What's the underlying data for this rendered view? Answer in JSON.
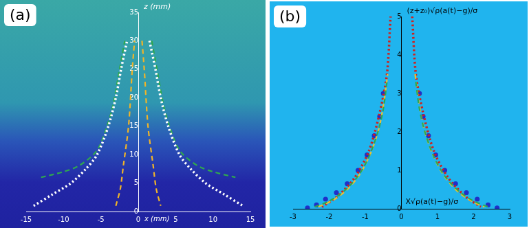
{
  "chart_data": [
    {
      "type": "line",
      "title": "(a)",
      "x_label": "x (mm)",
      "y_label": "z (mm)",
      "xlim": [
        -15,
        15
      ],
      "ylim": [
        0,
        35
      ],
      "xticks": [
        -15,
        -10,
        -5,
        0,
        5,
        10,
        15
      ],
      "yticks": [
        0,
        5,
        10,
        15,
        20,
        25,
        30,
        35
      ],
      "grid": false,
      "color": "#ffffff",
      "series": [
        {
          "color": "#ffffff",
          "line_style": "dotted",
          "marker": "none",
          "x": [
            -14,
            -11.5,
            -9,
            -7,
            -5.5,
            -4,
            -3,
            -2.3,
            -1.5,
            null,
            1.5,
            2.3,
            3,
            4,
            5.5,
            7,
            9,
            11.5,
            14
          ],
          "values": [
            1,
            3,
            5,
            7.5,
            10,
            15,
            20,
            25,
            30,
            null,
            30,
            25,
            20,
            15,
            10,
            7.5,
            5,
            3,
            1
          ]
        },
        {
          "color": "#2fa84f",
          "line_style": "dashed",
          "marker": "none",
          "x": [
            -13,
            -10,
            -8,
            -6,
            -5,
            -3.5,
            -2.5,
            -1.8,
            null,
            1.8,
            2.5,
            3.5,
            5,
            6,
            8,
            10,
            13
          ],
          "values": [
            6,
            7,
            8,
            10,
            12,
            18,
            25,
            30,
            null,
            30,
            25,
            18,
            12,
            10,
            8,
            7,
            6
          ]
        },
        {
          "color": "#f0b428",
          "line_style": "dashed",
          "marker": "none",
          "x": [
            -3,
            -2.4,
            -2,
            -1.3,
            -0.8,
            -0.5,
            null,
            0.5,
            0.8,
            1.3,
            2,
            2.4,
            3
          ],
          "values": [
            1,
            4,
            8,
            15,
            25,
            30,
            null,
            30,
            25,
            15,
            8,
            4,
            1
          ]
        }
      ]
    },
    {
      "type": "line",
      "title": "(b)",
      "x_label": "X√ρ(a(t)−g)/σ",
      "y_label": "(z+z₀)√ρ(a(t)−g)/σ",
      "xlim": [
        -3,
        3
      ],
      "ylim": [
        0,
        5
      ],
      "xticks": [
        -3,
        -2,
        -1,
        0,
        1,
        2,
        3
      ],
      "yticks": [
        0,
        1,
        2,
        3,
        4,
        5
      ],
      "grid": false,
      "color": "#000000",
      "series": [
        {
          "color": "#2fa84f",
          "line_style": "dashed",
          "marker": "none",
          "x": [
            -2.4,
            -2,
            -1.6,
            -1.2,
            -0.9,
            -0.65,
            -0.5,
            -0.4,
            null,
            0.4,
            0.5,
            0.65,
            0.9,
            1.2,
            1.6,
            2,
            2.4
          ],
          "values": [
            0.05,
            0.2,
            0.45,
            0.85,
            1.35,
            2,
            2.6,
            3.3,
            null,
            3.3,
            2.6,
            2,
            1.35,
            0.85,
            0.45,
            0.2,
            0.05
          ]
        },
        {
          "color": "#f0c030",
          "line_style": "dashed",
          "marker": "none",
          "x": [
            -2.3,
            -1.9,
            -1.5,
            -1.15,
            -0.85,
            -0.62,
            -0.48,
            -0.38,
            null,
            0.38,
            0.48,
            0.62,
            0.85,
            1.15,
            1.5,
            1.9,
            2.3
          ],
          "values": [
            0.05,
            0.22,
            0.5,
            0.9,
            1.45,
            2.1,
            2.8,
            3.5,
            null,
            3.5,
            2.8,
            2.1,
            1.45,
            0.9,
            0.5,
            0.22,
            0.05
          ]
        },
        {
          "color": "#d0201c",
          "line_style": "dotted",
          "marker": "none",
          "x": [
            -2.2,
            -1.8,
            -1.3,
            -0.9,
            -0.6,
            -0.4,
            -0.3,
            null,
            0.3,
            0.4,
            0.6,
            0.9,
            1.3,
            1.8,
            2.2
          ],
          "values": [
            0.05,
            0.3,
            0.8,
            1.5,
            2.5,
            3.5,
            5,
            null,
            5,
            3.5,
            2.5,
            1.5,
            0.8,
            0.3,
            0.05
          ]
        },
        {
          "color": "#2030c8",
          "line_style": "none",
          "marker": "circle",
          "x": [
            -2.6,
            -2.35,
            -2.1,
            -1.8,
            -1.5,
            -1.2,
            -0.95,
            -0.75,
            -0.6,
            -0.5,
            0.5,
            0.6,
            0.75,
            0.95,
            1.2,
            1.5,
            1.8,
            2.1,
            2.4,
            2.65
          ],
          "values": [
            0.02,
            0.1,
            0.25,
            0.42,
            0.65,
            1,
            1.4,
            1.9,
            2.4,
            3,
            3,
            2.4,
            1.9,
            1.4,
            1,
            0.65,
            0.42,
            0.25,
            0.1,
            0.02
          ]
        }
      ]
    }
  ]
}
